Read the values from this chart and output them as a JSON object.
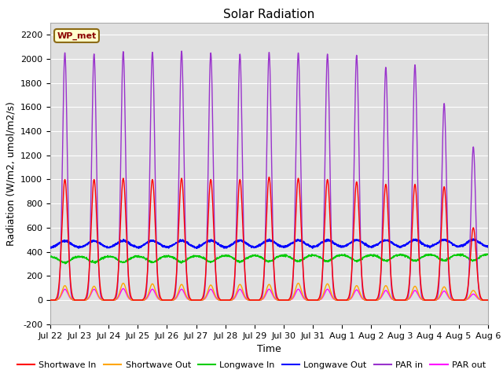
{
  "title": "Solar Radiation",
  "ylabel": "Radiation (W/m2, umol/m2/s)",
  "xlabel": "Time",
  "ylim": [
    -200,
    2300
  ],
  "yticks": [
    -200,
    0,
    200,
    400,
    600,
    800,
    1000,
    1200,
    1400,
    1600,
    1800,
    2000,
    2200
  ],
  "station_label": "WP_met",
  "background_color": "#e0e0e0",
  "n_days": 15,
  "x_tick_labels": [
    "Jul 22",
    "Jul 23",
    "Jul 24",
    "Jul 25",
    "Jul 26",
    "Jul 27",
    "Jul 28",
    "Jul 29",
    "Jul 30",
    "Jul 31",
    "Aug 1",
    "Aug 2",
    "Aug 3",
    "Aug 4",
    "Aug 5",
    "Aug 6"
  ],
  "colors": {
    "shortwave_in": "#ff0000",
    "shortwave_out": "#ffa500",
    "longwave_in": "#00cc00",
    "longwave_out": "#0000ff",
    "par_in": "#9932cc",
    "par_out": "#ff00ff"
  },
  "shortwave_in_peaks": [
    1000,
    1000,
    1010,
    1000,
    1010,
    1000,
    1000,
    1020,
    1010,
    1000,
    980,
    960,
    960,
    940,
    600
  ],
  "par_in_peaks": [
    2050,
    2040,
    2060,
    2055,
    2065,
    2050,
    2040,
    2055,
    2050,
    2040,
    2030,
    1930,
    1950,
    1630,
    1270
  ],
  "shortwave_out_peaks": [
    120,
    115,
    140,
    135,
    130,
    125,
    130,
    130,
    140,
    135,
    120,
    120,
    115,
    110,
    80
  ],
  "par_out_peaks": [
    90,
    90,
    95,
    90,
    90,
    90,
    90,
    90,
    90,
    90,
    85,
    80,
    80,
    75,
    50
  ],
  "longwave_in_base": 360,
  "longwave_out_base": 430,
  "title_fontsize": 11,
  "label_fontsize": 9,
  "tick_fontsize": 8
}
